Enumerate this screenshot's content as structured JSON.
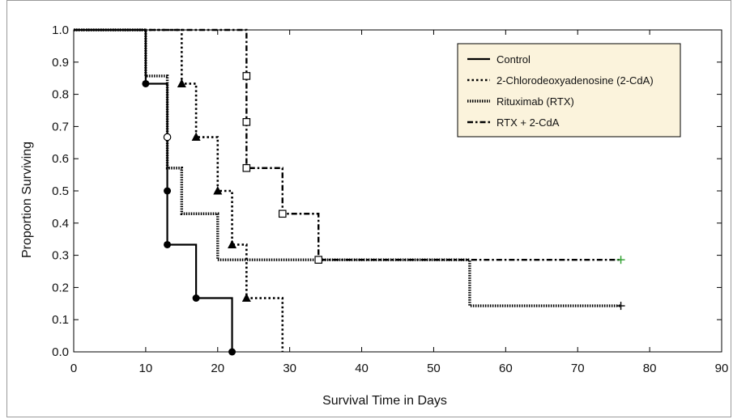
{
  "chart_data": {
    "type": "line",
    "title": "",
    "xlabel": "Survival Time in Days",
    "ylabel": "Proportion Surviving",
    "xlim": [
      0,
      90
    ],
    "ylim": [
      0,
      1.0
    ],
    "xticks": [
      "0",
      "10",
      "20",
      "30",
      "40",
      "50",
      "60",
      "70",
      "80",
      "90"
    ],
    "yticks": [
      "0.0",
      "0.1",
      "0.2",
      "0.3",
      "0.4",
      "0.5",
      "0.6",
      "0.7",
      "0.8",
      "0.9",
      "1.0"
    ],
    "grid": false,
    "legend_position": "top-right",
    "series": [
      {
        "name": "Control",
        "style": "solid",
        "color": "#000000",
        "steps": [
          [
            0,
            1.0
          ],
          [
            10,
            0.833
          ],
          [
            13,
            0.5
          ],
          [
            13,
            0.333
          ],
          [
            17,
            0.167
          ],
          [
            22,
            0.0
          ]
        ],
        "markers": {
          "shape": "circle",
          "points": [
            [
              10,
              0.833
            ],
            [
              13,
              0.5
            ],
            [
              13,
              0.333
            ],
            [
              17,
              0.167
            ],
            [
              22,
              0.0
            ]
          ]
        },
        "censored": []
      },
      {
        "name": "2-Chlorodeoxyadenosine (2-CdA)",
        "style": "dotted",
        "color": "#000000",
        "steps": [
          [
            0,
            1.0
          ],
          [
            15,
            0.833
          ],
          [
            17,
            0.667
          ],
          [
            20,
            0.5
          ],
          [
            22,
            0.333
          ],
          [
            24,
            0.167
          ],
          [
            29,
            0.0
          ]
        ],
        "markers": {
          "shape": "triangle",
          "points": [
            [
              15,
              0.833
            ],
            [
              17,
              0.667
            ],
            [
              20,
              0.5
            ],
            [
              22,
              0.333
            ],
            [
              24,
              0.167
            ]
          ]
        },
        "censored": []
      },
      {
        "name": "Rituximab (RTX)",
        "style": "dense-dotted",
        "color": "#000000",
        "steps": [
          [
            0,
            1.0
          ],
          [
            10,
            0.857
          ],
          [
            13,
            0.571
          ],
          [
            15,
            0.429
          ],
          [
            20,
            0.286
          ],
          [
            55,
            0.143
          ]
        ],
        "markers": {
          "shape": "circle-open",
          "points": [
            [
              13,
              0.667
            ]
          ]
        },
        "censored": [
          [
            76,
            0.143
          ]
        ],
        "end_x": 76
      },
      {
        "name": "RTX + 2-CdA",
        "style": "dash-dot",
        "color": "#000000",
        "steps": [
          [
            0,
            1.0
          ],
          [
            24,
            0.857
          ],
          [
            24,
            0.714
          ],
          [
            24,
            0.571
          ],
          [
            29,
            0.429
          ],
          [
            34,
            0.286
          ]
        ],
        "markers": {
          "shape": "square-open",
          "points": [
            [
              24,
              0.857
            ],
            [
              24,
              0.714
            ],
            [
              24,
              0.571
            ],
            [
              29,
              0.429
            ],
            [
              34,
              0.286
            ]
          ]
        },
        "censored": [
          [
            76,
            0.286
          ]
        ],
        "censored_color": "#2a9d2a",
        "end_x": 76
      }
    ]
  }
}
